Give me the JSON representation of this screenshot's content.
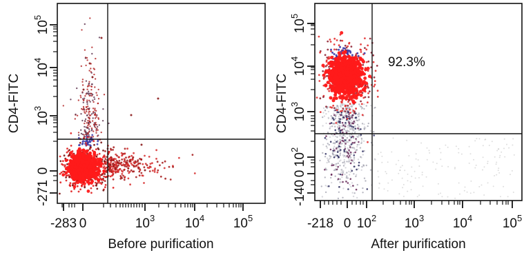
{
  "chart_data": [
    {
      "type": "scatter",
      "xlabel": "Before purification",
      "ylabel": "CD4-FITC",
      "x_ticks": [
        {
          "base": "-283",
          "exp": ""
        },
        {
          "base": "0",
          "exp": ""
        },
        {
          "base": "10",
          "exp": "3"
        },
        {
          "base": "10",
          "exp": "4"
        },
        {
          "base": "10",
          "exp": "5"
        }
      ],
      "y_ticks": [
        {
          "base": "-271",
          "exp": ""
        },
        {
          "base": "0",
          "exp": ""
        },
        {
          "base": "10",
          "exp": "3"
        },
        {
          "base": "10",
          "exp": "4"
        },
        {
          "base": "10",
          "exp": "5"
        }
      ],
      "quadrant_gate": {
        "x": 120,
        "y": 250
      },
      "populations": [
        {
          "name": "",
          "center": [
            0,
            0
          ],
          "note": "dense CD4-negative cluster"
        },
        {
          "name": "",
          "center": [
            30,
            300
          ],
          "note": "sparse events"
        }
      ],
      "quadrant_percent": ""
    },
    {
      "type": "scatter",
      "xlabel": "After purification",
      "ylabel": "CD4-FITC",
      "x_ticks": [
        {
          "base": "-218",
          "exp": ""
        },
        {
          "base": "0",
          "exp": ""
        },
        {
          "base": "10",
          "exp": "2"
        },
        {
          "base": "10",
          "exp": "3"
        },
        {
          "base": "10",
          "exp": "4"
        },
        {
          "base": "10",
          "exp": "5"
        }
      ],
      "y_ticks": [
        {
          "base": "-140",
          "exp": ""
        },
        {
          "base": "0",
          "exp": ""
        },
        {
          "base": "10",
          "exp": "2"
        },
        {
          "base": "10",
          "exp": "3"
        },
        {
          "base": "10",
          "exp": "4"
        },
        {
          "base": "10",
          "exp": "5"
        }
      ],
      "quadrant_gate": {
        "x": 120,
        "y": 300
      },
      "populations": [
        {
          "name": "",
          "center": [
            20,
            6000
          ],
          "note": "dense CD4-positive cluster"
        }
      ],
      "quadrant_percent": "92.3%"
    }
  ]
}
